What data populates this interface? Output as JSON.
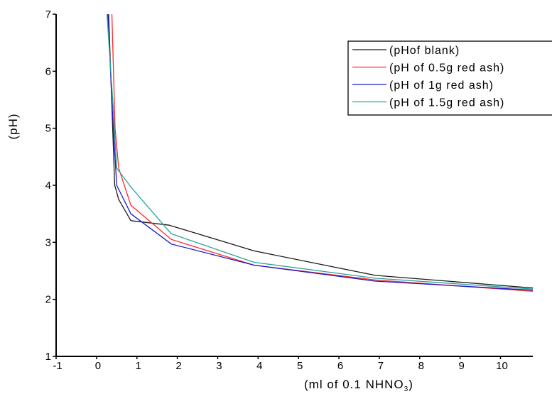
{
  "chart_data": {
    "type": "line",
    "xlabel": "(ml of 0.1 NHNO",
    "xlabel_subscript": "3",
    "xlabel_suffix": ")",
    "ylabel": "(pH)",
    "xlim": [
      -1,
      10.8
    ],
    "ylim": [
      1,
      7
    ],
    "xticks": [
      "-1",
      "0",
      "1",
      "2",
      "3",
      "4",
      "5",
      "6",
      "7",
      "8",
      "9",
      "10"
    ],
    "xtick_values": [
      -1,
      0,
      1,
      2,
      3,
      4,
      5,
      6,
      7,
      8,
      9,
      10
    ],
    "yticks": [
      "1",
      "2",
      "3",
      "4",
      "5",
      "6",
      "7"
    ],
    "ytick_values": [
      1,
      2,
      3,
      4,
      5,
      6,
      7
    ],
    "grid": false,
    "legend_position": "top-right",
    "series": [
      {
        "name": "(pHof blank)",
        "color": "#1a1a1a",
        "points": [
          [
            0.3,
            7.0
          ],
          [
            0.4,
            5.0
          ],
          [
            0.45,
            4.0
          ],
          [
            0.55,
            3.75
          ],
          [
            0.85,
            3.38
          ],
          [
            1.8,
            3.3
          ],
          [
            3.9,
            2.85
          ],
          [
            6.9,
            2.42
          ],
          [
            10.8,
            2.2
          ]
        ]
      },
      {
        "name": "(pH of 0.5g red ash)",
        "color": "#ff2a2a",
        "points": [
          [
            0.38,
            7.0
          ],
          [
            0.46,
            5.0
          ],
          [
            0.55,
            4.3
          ],
          [
            0.85,
            3.65
          ],
          [
            1.85,
            3.05
          ],
          [
            3.9,
            2.6
          ],
          [
            6.9,
            2.34
          ],
          [
            10.8,
            2.14
          ]
        ]
      },
      {
        "name": "(pH of 1g red ash)",
        "color": "#1a1acc",
        "points": [
          [
            0.28,
            7.0
          ],
          [
            0.4,
            5.2
          ],
          [
            0.5,
            4.0
          ],
          [
            0.85,
            3.5
          ],
          [
            1.85,
            2.97
          ],
          [
            3.9,
            2.6
          ],
          [
            6.9,
            2.32
          ],
          [
            10.8,
            2.16
          ]
        ]
      },
      {
        "name": "(pH of 1.5g red ash)",
        "color": "#2aa39a",
        "points": [
          [
            0.26,
            7.0
          ],
          [
            0.4,
            5.5
          ],
          [
            0.5,
            4.3
          ],
          [
            0.85,
            3.97
          ],
          [
            1.85,
            3.15
          ],
          [
            3.9,
            2.65
          ],
          [
            6.9,
            2.37
          ],
          [
            10.8,
            2.18
          ]
        ]
      }
    ]
  }
}
